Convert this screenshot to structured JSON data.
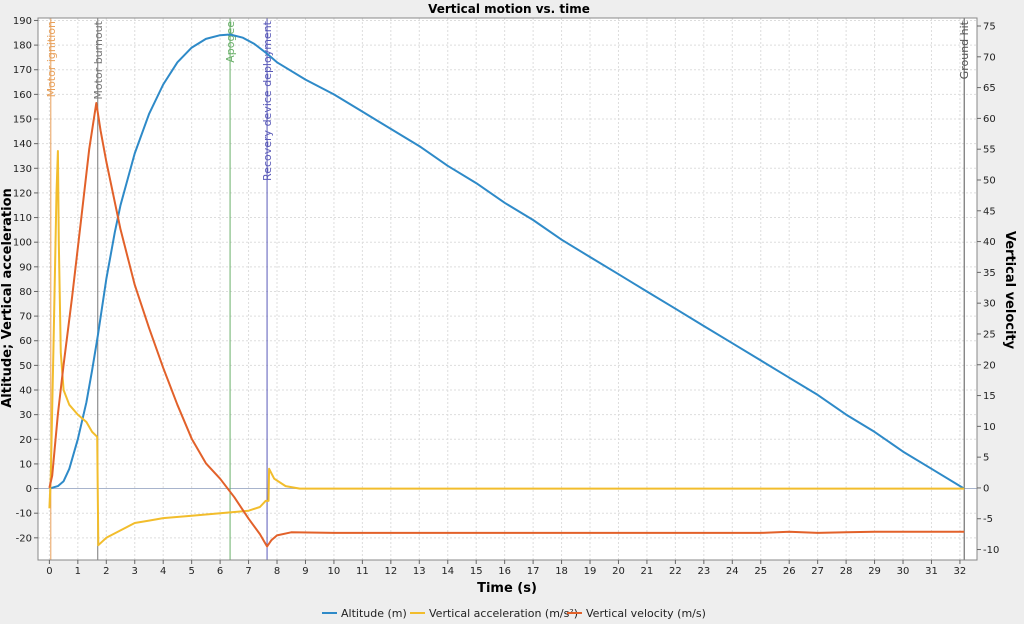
{
  "chart_data": {
    "type": "line",
    "title": "Vertical motion vs. time",
    "xlabel": "Time (s)",
    "ylabel": "Altitude; Vertical acceleration",
    "ylabel_right": "Vertical velocity",
    "xlim": [
      -0.4,
      32.6
    ],
    "ylim": [
      -29,
      191
    ],
    "ylim_right": [
      -11.7,
      76.3
    ],
    "xticks": [
      0,
      1,
      2,
      3,
      4,
      5,
      6,
      7,
      8,
      9,
      10,
      11,
      12,
      13,
      14,
      15,
      16,
      17,
      18,
      19,
      20,
      21,
      22,
      23,
      24,
      25,
      26,
      27,
      28,
      29,
      30,
      31,
      32
    ],
    "yticks_left": [
      -20,
      -10,
      0,
      10,
      20,
      30,
      40,
      50,
      60,
      70,
      80,
      90,
      100,
      110,
      120,
      130,
      140,
      150,
      160,
      170,
      180,
      190
    ],
    "yticks_right": [
      -10,
      -5,
      0,
      5,
      10,
      15,
      20,
      25,
      30,
      35,
      40,
      45,
      50,
      55,
      60,
      65,
      70,
      75
    ],
    "grid": true,
    "legend_position": "bottom",
    "events": [
      {
        "label": "Motor ignition",
        "t": 0.05,
        "color": "#e8a05a"
      },
      {
        "label": "Motor burnout",
        "t": 1.7,
        "color": "#777777"
      },
      {
        "label": "Apogee",
        "t": 6.35,
        "color": "#6ab06a"
      },
      {
        "label": "Recovery device deployment",
        "t": 7.65,
        "color": "#5a5ab8"
      },
      {
        "label": "Ground hit",
        "t": 32.15,
        "color": "#555555"
      }
    ],
    "series": [
      {
        "name": "Altitude (m)",
        "axis": "left",
        "color": "#2e8ac8",
        "points": [
          [
            0,
            0
          ],
          [
            0.3,
            1
          ],
          [
            0.5,
            3
          ],
          [
            0.7,
            8
          ],
          [
            1.0,
            20
          ],
          [
            1.3,
            35
          ],
          [
            1.5,
            48
          ],
          [
            1.7,
            62
          ],
          [
            2.0,
            85
          ],
          [
            2.3,
            104
          ],
          [
            2.5,
            115
          ],
          [
            3.0,
            136
          ],
          [
            3.5,
            152
          ],
          [
            4.0,
            164
          ],
          [
            4.5,
            173
          ],
          [
            5.0,
            179
          ],
          [
            5.5,
            182.5
          ],
          [
            6.0,
            184
          ],
          [
            6.35,
            184.3
          ],
          [
            6.8,
            183
          ],
          [
            7.2,
            180.5
          ],
          [
            7.65,
            176.5
          ],
          [
            8.0,
            173
          ],
          [
            9.0,
            166
          ],
          [
            10.0,
            160
          ],
          [
            11.0,
            153
          ],
          [
            12.0,
            146
          ],
          [
            13.0,
            139
          ],
          [
            14.0,
            131
          ],
          [
            15.0,
            124
          ],
          [
            16.0,
            116
          ],
          [
            17.0,
            109
          ],
          [
            18.0,
            101
          ],
          [
            19.0,
            94
          ],
          [
            20.0,
            87
          ],
          [
            21.0,
            80
          ],
          [
            22.0,
            73
          ],
          [
            23.0,
            66
          ],
          [
            24.0,
            59
          ],
          [
            25.0,
            52
          ],
          [
            26.0,
            45
          ],
          [
            27.0,
            38
          ],
          [
            28.0,
            30
          ],
          [
            29.0,
            23
          ],
          [
            30.0,
            15
          ],
          [
            31.0,
            8
          ],
          [
            32.15,
            0
          ]
        ]
      },
      {
        "name": "Vertical acceleration (m/s²)",
        "axis": "left",
        "color": "#f2bd2c",
        "points": [
          [
            0,
            -8
          ],
          [
            0.05,
            5
          ],
          [
            0.15,
            60
          ],
          [
            0.25,
            120
          ],
          [
            0.3,
            137
          ],
          [
            0.33,
            100
          ],
          [
            0.4,
            55
          ],
          [
            0.5,
            40
          ],
          [
            0.7,
            34
          ],
          [
            1.0,
            30
          ],
          [
            1.3,
            27
          ],
          [
            1.5,
            23
          ],
          [
            1.68,
            21
          ],
          [
            1.72,
            -23
          ],
          [
            2.0,
            -20
          ],
          [
            2.5,
            -17
          ],
          [
            3.0,
            -14
          ],
          [
            3.5,
            -13
          ],
          [
            4.0,
            -12
          ],
          [
            5.0,
            -11
          ],
          [
            6.0,
            -10
          ],
          [
            7.0,
            -9
          ],
          [
            7.4,
            -7.5
          ],
          [
            7.6,
            -5
          ],
          [
            7.7,
            -5
          ],
          [
            7.72,
            8
          ],
          [
            7.9,
            4
          ],
          [
            8.3,
            1
          ],
          [
            8.8,
            0
          ],
          [
            32.15,
            0
          ]
        ]
      },
      {
        "name": "Vertical velocity (m/s)",
        "axis": "right",
        "color": "#e2612a",
        "points": [
          [
            0,
            0
          ],
          [
            0.1,
            2
          ],
          [
            0.3,
            12
          ],
          [
            0.5,
            20
          ],
          [
            0.8,
            31
          ],
          [
            1.1,
            43
          ],
          [
            1.4,
            55
          ],
          [
            1.65,
            62.5
          ],
          [
            1.8,
            58
          ],
          [
            2.0,
            53
          ],
          [
            2.5,
            42
          ],
          [
            3.0,
            33
          ],
          [
            3.5,
            26
          ],
          [
            4.0,
            19.5
          ],
          [
            4.5,
            13.5
          ],
          [
            5.0,
            8
          ],
          [
            5.5,
            4
          ],
          [
            6.0,
            1.5
          ],
          [
            6.5,
            -1.5
          ],
          [
            7.0,
            -5
          ],
          [
            7.4,
            -7.5
          ],
          [
            7.65,
            -9.5
          ],
          [
            7.8,
            -8.5
          ],
          [
            8.0,
            -7.7
          ],
          [
            8.5,
            -7.2
          ],
          [
            10,
            -7.3
          ],
          [
            15,
            -7.3
          ],
          [
            20,
            -7.3
          ],
          [
            25,
            -7.3
          ],
          [
            26,
            -7.1
          ],
          [
            27,
            -7.3
          ],
          [
            28,
            -7.2
          ],
          [
            29,
            -7.1
          ],
          [
            30,
            -7.1
          ],
          [
            31,
            -7.1
          ],
          [
            32.15,
            -7.1
          ]
        ]
      }
    ]
  }
}
